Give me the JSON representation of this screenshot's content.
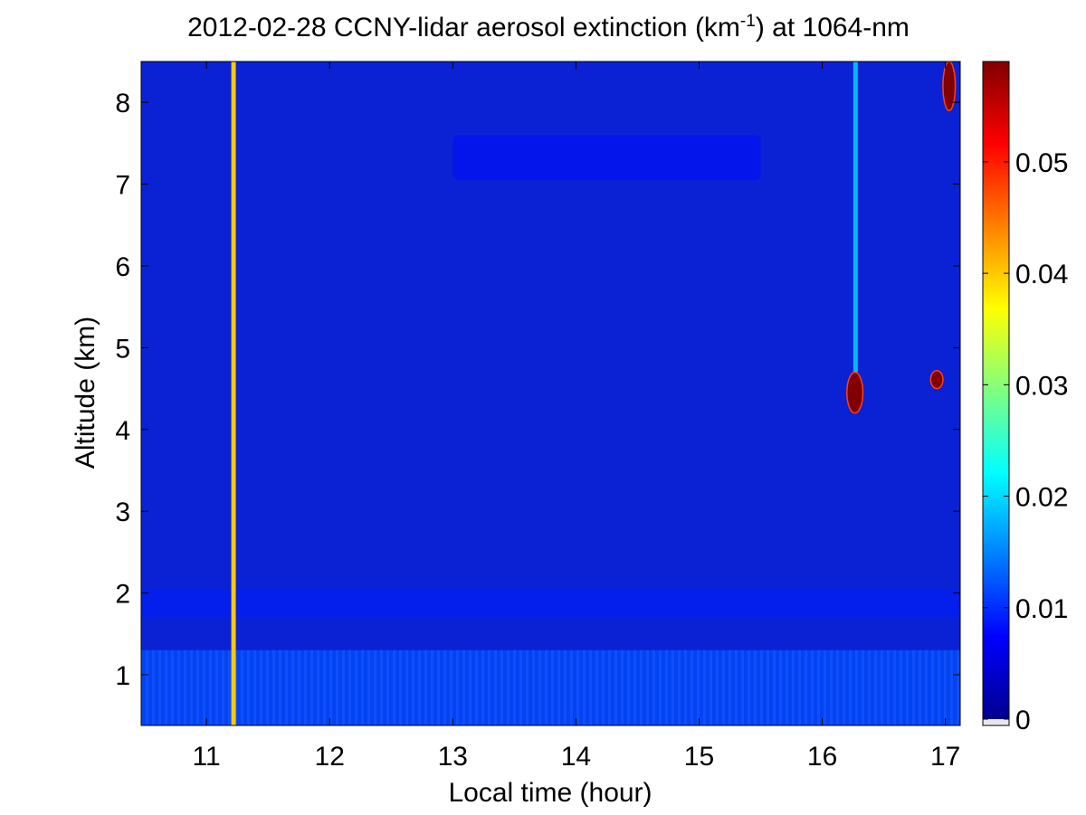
{
  "chart_data": {
    "type": "heatmap",
    "title": "2012-02-28 CCNY-lidar aerosol extinction (km",
    "title_superscript": "-1",
    "title_suffix": ") at 1064-nm",
    "xlabel": "Local time (hour)",
    "ylabel": "Altitude (km)",
    "xlim": [
      10.47,
      17.12
    ],
    "ylim": [
      0.38,
      8.5
    ],
    "x_ticks": [
      11,
      12,
      13,
      14,
      15,
      16,
      17
    ],
    "y_ticks": [
      1,
      2,
      3,
      4,
      5,
      6,
      7,
      8
    ],
    "colorbar": {
      "colormap": "jet",
      "range": [
        0,
        0.059
      ],
      "ticks": [
        0,
        0.01,
        0.02,
        0.03,
        0.04,
        0.05
      ],
      "tick_labels": [
        "0",
        "0.01",
        "0.02",
        "0.03",
        "0.04",
        "0.05"
      ]
    },
    "features": [
      {
        "kind": "boundary_layer",
        "x_range": [
          10.47,
          17.12
        ],
        "y_range": [
          0.38,
          1.3
        ],
        "value": 0.012
      },
      {
        "kind": "layer",
        "x_range": [
          10.47,
          17.12
        ],
        "y_range": [
          1.7,
          2.05
        ],
        "value": 0.009
      },
      {
        "kind": "layer",
        "x_range": [
          13.0,
          15.5
        ],
        "y_range": [
          7.05,
          7.6
        ],
        "value": 0.008
      },
      {
        "kind": "vertical_streak",
        "x": 11.22,
        "y_range": [
          0.38,
          8.5
        ],
        "value": 0.04
      },
      {
        "kind": "vertical_streak",
        "x": 16.27,
        "y_range": [
          4.7,
          8.5
        ],
        "value": 0.018
      },
      {
        "kind": "cloud",
        "x_range": [
          16.2,
          16.33
        ],
        "y_range": [
          4.2,
          4.7
        ],
        "value": 0.059
      },
      {
        "kind": "cloud",
        "x_range": [
          16.88,
          16.98
        ],
        "y_range": [
          4.5,
          4.72
        ],
        "value": 0.059
      },
      {
        "kind": "cloud",
        "x_range": [
          16.98,
          17.08
        ],
        "y_range": [
          7.9,
          8.5
        ],
        "value": 0.059
      }
    ]
  }
}
